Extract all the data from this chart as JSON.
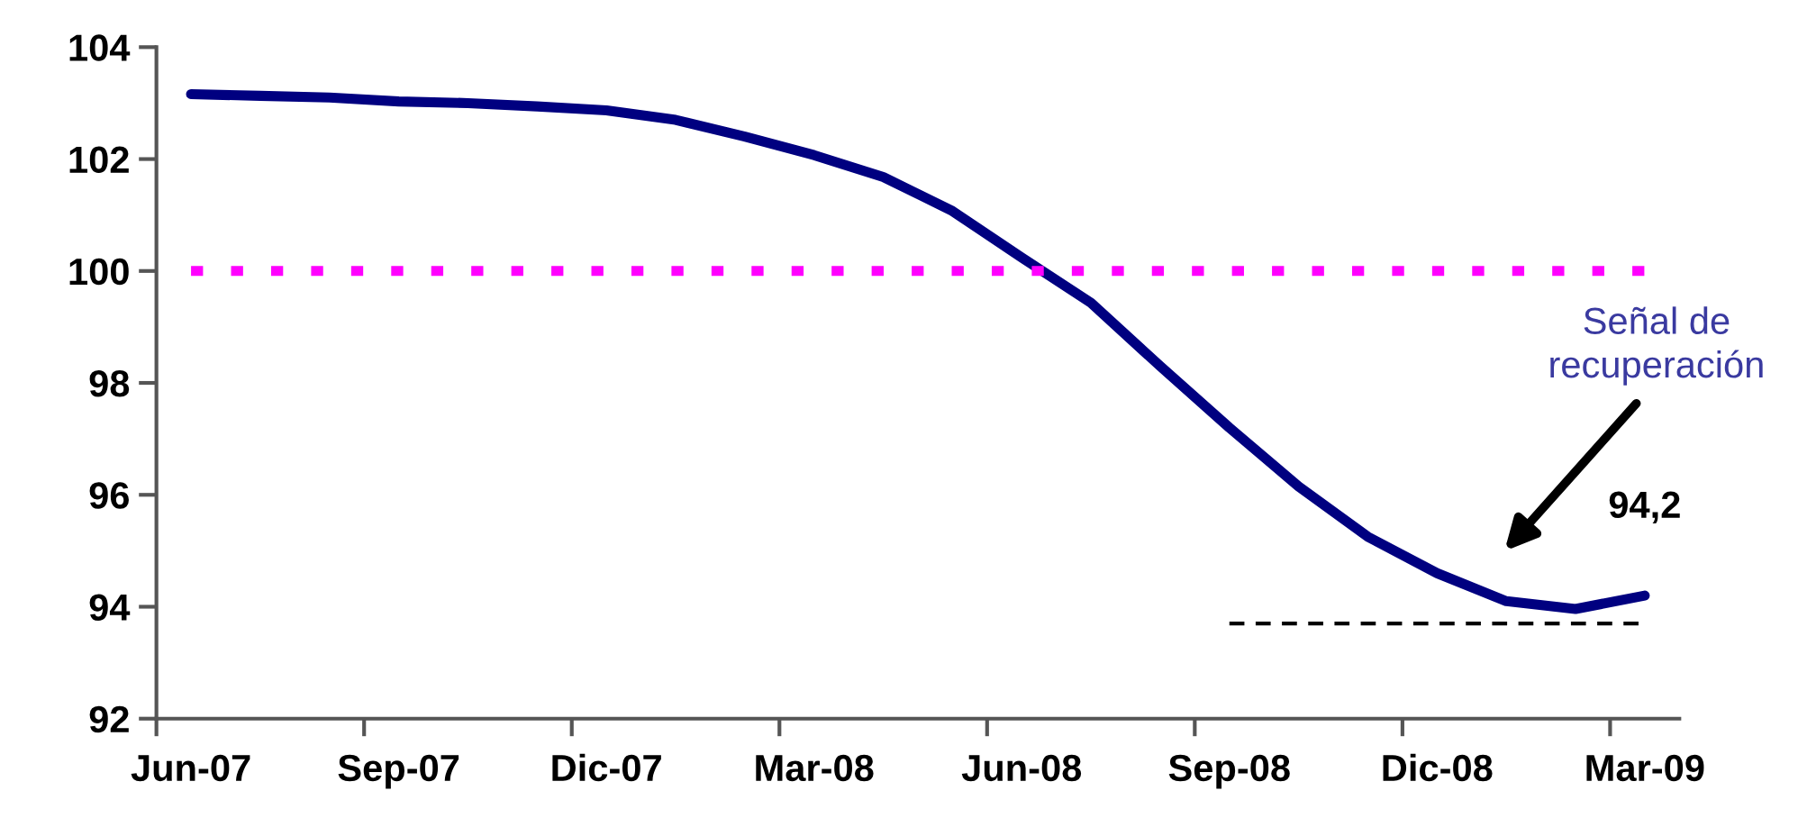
{
  "chart_data": {
    "type": "line",
    "categories": [
      "Jun-07",
      null,
      null,
      "Sep-07",
      null,
      null,
      "Dic-07",
      null,
      null,
      "Mar-08",
      null,
      null,
      "Jun-08",
      null,
      null,
      "Sep-08",
      null,
      null,
      "Dic-08",
      null,
      null,
      "Mar-09"
    ],
    "series": [
      {
        "color": "#000080",
        "line_style": "solid",
        "values": [
          103.16,
          103.13,
          103.1,
          103.03,
          103.0,
          102.94,
          102.87,
          102.7,
          102.4,
          102.07,
          101.68,
          101.07,
          100.24,
          99.43,
          98.3,
          97.2,
          96.15,
          95.25,
          94.6,
          94.1,
          93.96,
          94.2
        ],
        "value_labels": [
          null,
          null,
          null,
          null,
          null,
          null,
          null,
          null,
          null,
          null,
          null,
          null,
          null,
          null,
          null,
          null,
          null,
          null,
          null,
          null,
          null,
          "94,2"
        ]
      },
      {
        "color": "#000000",
        "line_style": "dashed",
        "values": [
          null,
          null,
          null,
          null,
          null,
          null,
          null,
          null,
          null,
          null,
          null,
          null,
          null,
          null,
          null,
          93.7,
          93.7,
          93.7,
          93.7,
          93.7,
          93.7,
          93.7
        ]
      }
    ],
    "ylim": [
      92,
      104
    ],
    "yticks": [
      92,
      94,
      96,
      98,
      100,
      102,
      104
    ],
    "ref_lines": [
      {
        "axis": "y",
        "value": 100,
        "color": "#ff00ff",
        "line_style": "dotted"
      }
    ],
    "annotations": [
      "Señal de recuperación"
    ],
    "grid": false,
    "legend": false
  }
}
